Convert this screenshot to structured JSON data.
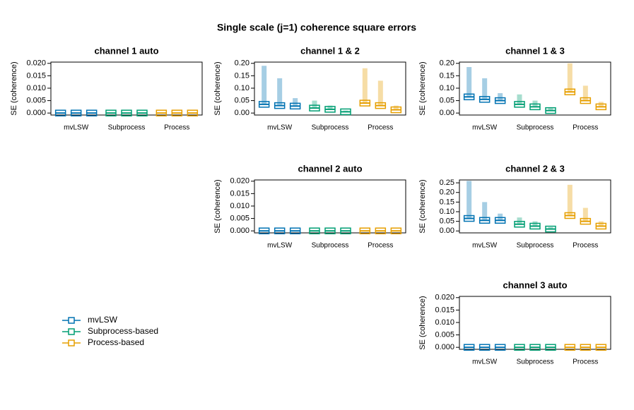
{
  "title": "Single scale (j=1) coherence square errors",
  "chart_data": [
    {
      "type": "box",
      "title": "channel 1 auto",
      "ylabel": "SE (coherence)",
      "categories": [
        "mvLSW",
        "Subprocess",
        "Process"
      ],
      "ylim": [
        -0.0008,
        0.0205
      ],
      "yticks": [
        {
          "value": 0,
          "label": "0.000"
        },
        {
          "value": 0.005,
          "label": "0.005"
        },
        {
          "value": 0.01,
          "label": "0.010"
        },
        {
          "value": 0.015,
          "label": "0.015"
        },
        {
          "value": 0.02,
          "label": "0.020"
        }
      ],
      "series": [
        {
          "name": "mvLSW",
          "color": "#0072b2",
          "medians": [
            0,
            0,
            0
          ],
          "maxima": [
            0.0002,
            0.0002,
            0.0002
          ]
        },
        {
          "name": "Subprocess-based",
          "color": "#009e73",
          "medians": [
            0,
            0,
            0
          ],
          "maxima": [
            0.0002,
            0.0002,
            0.0002
          ]
        },
        {
          "name": "Process-based",
          "color": "#e69f00",
          "medians": [
            0,
            0,
            0
          ],
          "maxima": [
            0.0002,
            0.0002,
            0.0002
          ]
        }
      ]
    },
    {
      "type": "box",
      "title": "channel 1 & 2",
      "ylabel": "SE (coherence)",
      "categories": [
        "mvLSW",
        "Subprocess",
        "Process"
      ],
      "ylim": [
        -0.008,
        0.205
      ],
      "yticks": [
        {
          "value": 0,
          "label": "0.00"
        },
        {
          "value": 0.05,
          "label": "0.05"
        },
        {
          "value": 0.1,
          "label": "0.10"
        },
        {
          "value": 0.15,
          "label": "0.15"
        },
        {
          "value": 0.2,
          "label": "0.20"
        }
      ],
      "series": [
        {
          "name": "mvLSW",
          "color": "#0072b2",
          "medians": [
            0.035,
            0.03,
            0.028
          ],
          "maxima": [
            0.19,
            0.14,
            0.06
          ]
        },
        {
          "name": "Subprocess-based",
          "color": "#009e73",
          "medians": [
            0.02,
            0.015,
            0.005
          ],
          "maxima": [
            0.05,
            0.03,
            0.01
          ]
        },
        {
          "name": "Process-based",
          "color": "#e69f00",
          "medians": [
            0.04,
            0.03,
            0.013
          ],
          "maxima": [
            0.18,
            0.13,
            0.03
          ]
        }
      ]
    },
    {
      "type": "box",
      "title": "channel 1 & 3",
      "ylabel": "SE (coherence)",
      "categories": [
        "mvLSW",
        "Subprocess",
        "Process"
      ],
      "ylim": [
        -0.008,
        0.205
      ],
      "yticks": [
        {
          "value": 0,
          "label": "0.00"
        },
        {
          "value": 0.05,
          "label": "0.05"
        },
        {
          "value": 0.1,
          "label": "0.10"
        },
        {
          "value": 0.15,
          "label": "0.15"
        },
        {
          "value": 0.2,
          "label": "0.20"
        }
      ],
      "series": [
        {
          "name": "mvLSW",
          "color": "#0072b2",
          "medians": [
            0.065,
            0.055,
            0.05
          ],
          "maxima": [
            0.185,
            0.14,
            0.08
          ]
        },
        {
          "name": "Subprocess-based",
          "color": "#009e73",
          "medians": [
            0.035,
            0.025,
            0.01
          ],
          "maxima": [
            0.075,
            0.05,
            0.02
          ]
        },
        {
          "name": "Process-based",
          "color": "#e69f00",
          "medians": [
            0.085,
            0.05,
            0.025
          ],
          "maxima": [
            0.2,
            0.11,
            0.045
          ]
        }
      ]
    },
    {
      "type": "box",
      "title": "channel 2 auto",
      "ylabel": "SE (coherence)",
      "categories": [
        "mvLSW",
        "Subprocess",
        "Process"
      ],
      "ylim": [
        -0.0008,
        0.0205
      ],
      "yticks": [
        {
          "value": 0,
          "label": "0.000"
        },
        {
          "value": 0.005,
          "label": "0.005"
        },
        {
          "value": 0.01,
          "label": "0.010"
        },
        {
          "value": 0.015,
          "label": "0.015"
        },
        {
          "value": 0.02,
          "label": "0.020"
        }
      ],
      "series": [
        {
          "name": "mvLSW",
          "color": "#0072b2",
          "medians": [
            0,
            0,
            0
          ],
          "maxima": [
            0.0002,
            0.0002,
            0.0002
          ]
        },
        {
          "name": "Subprocess-based",
          "color": "#009e73",
          "medians": [
            0,
            0,
            0
          ],
          "maxima": [
            0.0002,
            0.0002,
            0.0002
          ]
        },
        {
          "name": "Process-based",
          "color": "#e69f00",
          "medians": [
            0,
            0,
            0
          ],
          "maxima": [
            0.0002,
            0.0002,
            0.0002
          ]
        }
      ]
    },
    {
      "type": "box",
      "title": "channel 2 & 3",
      "ylabel": "SE (coherence)",
      "categories": [
        "mvLSW",
        "Subprocess",
        "Process"
      ],
      "ylim": [
        -0.01,
        0.265
      ],
      "yticks": [
        {
          "value": 0,
          "label": "0.00"
        },
        {
          "value": 0.05,
          "label": "0.05"
        },
        {
          "value": 0.1,
          "label": "0.10"
        },
        {
          "value": 0.15,
          "label": "0.15"
        },
        {
          "value": 0.2,
          "label": "0.20"
        },
        {
          "value": 0.25,
          "label": "0.25"
        }
      ],
      "series": [
        {
          "name": "mvLSW",
          "color": "#0072b2",
          "medians": [
            0.065,
            0.055,
            0.055
          ],
          "maxima": [
            0.26,
            0.15,
            0.09
          ]
        },
        {
          "name": "Subprocess-based",
          "color": "#009e73",
          "medians": [
            0.035,
            0.025,
            0.01
          ],
          "maxima": [
            0.07,
            0.05,
            0.02
          ]
        },
        {
          "name": "Process-based",
          "color": "#e69f00",
          "medians": [
            0.08,
            0.05,
            0.025
          ],
          "maxima": [
            0.24,
            0.12,
            0.05
          ]
        }
      ]
    },
    {
      "type": "box",
      "title": "channel 3 auto",
      "ylabel": "SE (coherence)",
      "categories": [
        "mvLSW",
        "Subprocess",
        "Process"
      ],
      "ylim": [
        -0.0008,
        0.0205
      ],
      "yticks": [
        {
          "value": 0,
          "label": "0.000"
        },
        {
          "value": 0.005,
          "label": "0.005"
        },
        {
          "value": 0.01,
          "label": "0.010"
        },
        {
          "value": 0.015,
          "label": "0.015"
        },
        {
          "value": 0.02,
          "label": "0.020"
        }
      ],
      "series": [
        {
          "name": "mvLSW",
          "color": "#0072b2",
          "medians": [
            0,
            0,
            0
          ],
          "maxima": [
            0.0002,
            0.0002,
            0.0002
          ]
        },
        {
          "name": "Subprocess-based",
          "color": "#009e73",
          "medians": [
            0,
            0,
            0
          ],
          "maxima": [
            0.0002,
            0.0002,
            0.0002
          ]
        },
        {
          "name": "Process-based",
          "color": "#e69f00",
          "medians": [
            0,
            0,
            0
          ],
          "maxima": [
            0.0002,
            0.0002,
            0.0002
          ]
        }
      ]
    }
  ]
}
